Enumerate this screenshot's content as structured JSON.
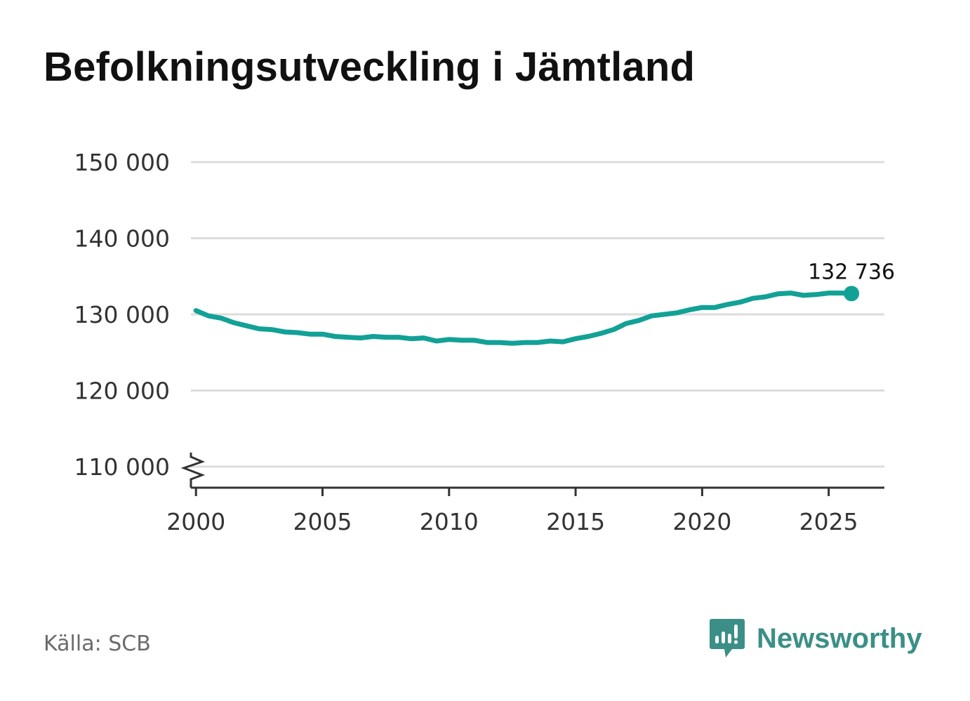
{
  "title": "Befolkningsutveckling i Jämtland",
  "source": "Källa: SCB",
  "brand": {
    "name": "Newsworthy",
    "icon": "newsworthy-logo-icon",
    "color": "#3b8f86"
  },
  "colors": {
    "line": "#12a196",
    "grid": "#dcdcdc",
    "axis": "#333333"
  },
  "chart_data": {
    "type": "line",
    "title": "Befolkningsutveckling i Jämtland",
    "xlabel": "",
    "ylabel": "",
    "xlim": [
      1999.8,
      2027.2
    ],
    "ylim": [
      110000,
      150000
    ],
    "y_axis_break": true,
    "grid": true,
    "x_ticks": [
      2000,
      2005,
      2010,
      2015,
      2020,
      2025
    ],
    "x_tick_labels": [
      "2000",
      "2005",
      "2010",
      "2015",
      "2020",
      "2025"
    ],
    "y_ticks": [
      110000,
      120000,
      130000,
      140000,
      150000
    ],
    "y_tick_labels": [
      "110 000",
      "120 000",
      "130 000",
      "140 000",
      "150 000"
    ],
    "series": [
      {
        "name": "Befolkning",
        "x": [
          2000.0,
          2000.5,
          2001.0,
          2001.5,
          2002.0,
          2002.5,
          2003.0,
          2003.5,
          2004.0,
          2004.5,
          2005.0,
          2005.5,
          2006.0,
          2006.5,
          2007.0,
          2007.5,
          2008.0,
          2008.5,
          2009.0,
          2009.5,
          2010.0,
          2010.5,
          2011.0,
          2011.5,
          2012.0,
          2012.5,
          2013.0,
          2013.5,
          2014.0,
          2014.5,
          2015.0,
          2015.5,
          2016.0,
          2016.5,
          2017.0,
          2017.5,
          2018.0,
          2018.5,
          2019.0,
          2019.5,
          2020.0,
          2020.5,
          2021.0,
          2021.5,
          2022.0,
          2022.5,
          2023.0,
          2023.5,
          2024.0,
          2024.5,
          2025.0,
          2025.5,
          2025.9
        ],
        "values": [
          130500,
          129800,
          129500,
          128900,
          128500,
          128100,
          128000,
          127700,
          127600,
          127400,
          127400,
          127100,
          127000,
          126900,
          127100,
          127000,
          127000,
          126800,
          126900,
          126500,
          126700,
          126600,
          126600,
          126300,
          126300,
          126200,
          126300,
          126300,
          126500,
          126400,
          126800,
          127100,
          127500,
          128000,
          128800,
          129200,
          129800,
          130000,
          130200,
          130600,
          130900,
          130900,
          131300,
          131600,
          132100,
          132300,
          132700,
          132800,
          132500,
          132600,
          132800,
          132800,
          132736
        ]
      }
    ],
    "end_label": {
      "x": 2025.9,
      "value": 132736,
      "text": "132 736"
    }
  }
}
